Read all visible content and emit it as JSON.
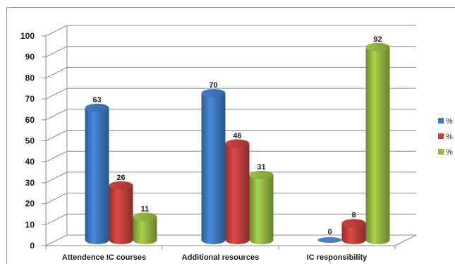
{
  "chart_data": {
    "type": "bar",
    "categories": [
      "Attendence IC courses",
      "Additional resources",
      "IC responsibility"
    ],
    "series": [
      {
        "name": "%",
        "values": [
          63,
          70,
          0
        ],
        "color": "#3f78c0"
      },
      {
        "name": "%",
        "values": [
          26,
          46,
          8
        ],
        "color": "#c0403d"
      },
      {
        "name": "%",
        "values": [
          11,
          31,
          92
        ],
        "color": "#93b740"
      }
    ],
    "title": "",
    "xlabel": "",
    "ylabel": "",
    "ylim": [
      0,
      100
    ],
    "yticks": [
      "0",
      "10",
      "20",
      "30",
      "40",
      "50",
      "60",
      "70",
      "80",
      "90",
      "100"
    ],
    "grid": true,
    "legend_position": "right",
    "style": "3d-cylinder"
  }
}
